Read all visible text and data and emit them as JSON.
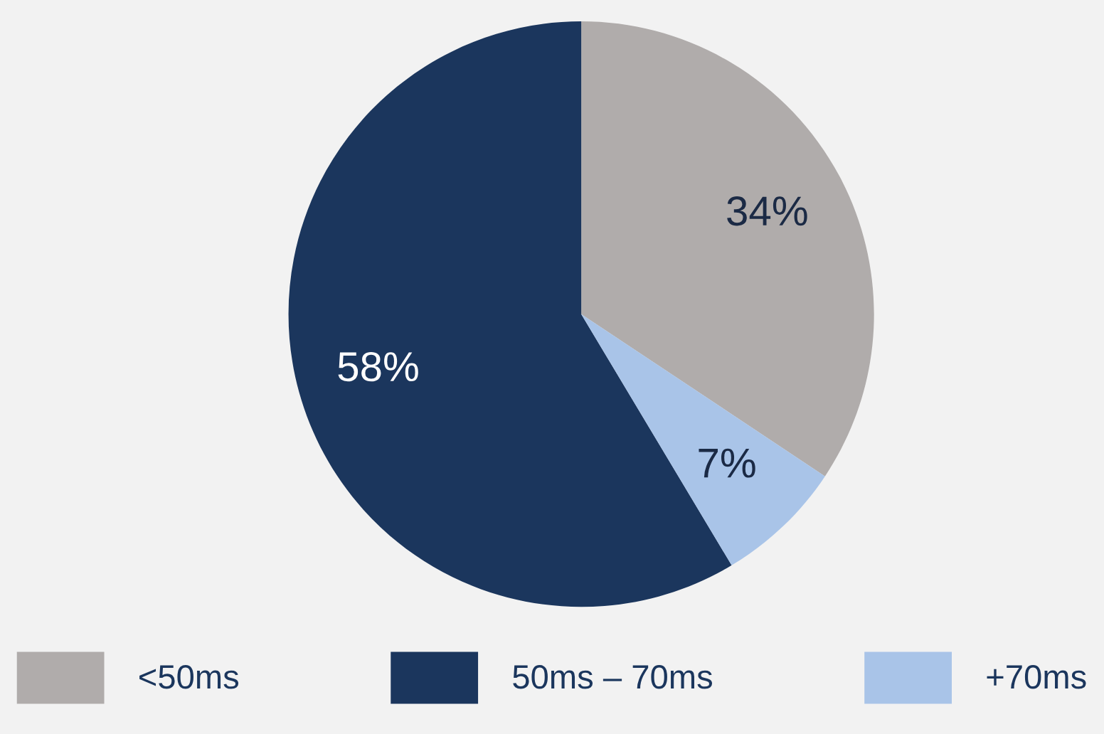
{
  "chart_data": {
    "type": "pie",
    "categories": [
      "<50ms",
      "50ms – 70ms",
      "+70ms"
    ],
    "values": [
      34,
      58,
      7
    ],
    "colors": [
      "#b0acab",
      "#1b365d",
      "#a9c4e8"
    ],
    "value_labels": [
      "34%",
      "58%",
      "7%"
    ],
    "legend": "bottom"
  }
}
